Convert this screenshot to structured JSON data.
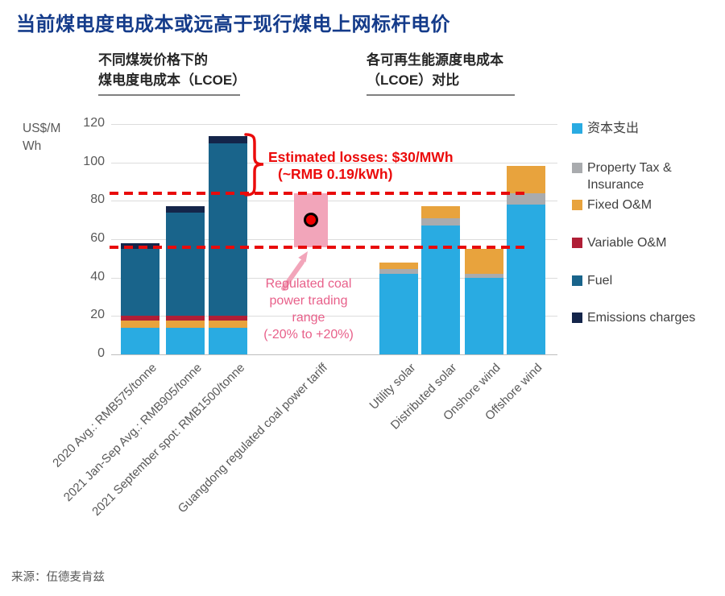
{
  "page": {
    "title": "当前煤电度电成本或远高于现行煤电上网标杆电价",
    "source": "来源：伍德麦肯兹"
  },
  "panels": {
    "left": {
      "line1": "不同煤炭价格下的",
      "line2": "煤电度电成本（LCOE）"
    },
    "right": {
      "line1": "各可再生能源度电成本",
      "line2": "（LCOE）对比"
    }
  },
  "chart_data": {
    "type": "bar",
    "stacked": true,
    "unit_label": "US$/MWh",
    "unit_label_lines": [
      "US$/M",
      "Wh"
    ],
    "ylim": [
      0,
      120
    ],
    "yticks": [
      0,
      20,
      40,
      60,
      80,
      100,
      120
    ],
    "grid": true,
    "legend_position": "right",
    "legend": [
      {
        "key": "capital",
        "label": "资本支出",
        "color": "#29ABE2"
      },
      {
        "key": "property_tax",
        "label": "Property Tax & Insurance",
        "color": "#A9ABAE"
      },
      {
        "key": "fixed_om",
        "label": "Fixed O&M",
        "color": "#E8A33D"
      },
      {
        "key": "variable_om",
        "label": "Variable O&M",
        "color": "#B01E36"
      },
      {
        "key": "fuel",
        "label": "Fuel",
        "color": "#19648B"
      },
      {
        "key": "emissions",
        "label": "Emissions charges",
        "color": "#14254A"
      }
    ],
    "bars": [
      {
        "category": "2020 Avg.: RMB575/tonne",
        "group": "coal",
        "total": 58,
        "segments": [
          {
            "key": "capital",
            "value": 14
          },
          {
            "key": "fixed_om",
            "value": 3.5
          },
          {
            "key": "variable_om",
            "value": 2.5
          },
          {
            "key": "fuel",
            "value": 35
          },
          {
            "key": "emissions",
            "value": 3
          }
        ]
      },
      {
        "category": "2021 Jan-Sep Avg.: RMB905/tonne",
        "group": "coal",
        "total": 77,
        "segments": [
          {
            "key": "capital",
            "value": 14
          },
          {
            "key": "fixed_om",
            "value": 3.5
          },
          {
            "key": "variable_om",
            "value": 2.5
          },
          {
            "key": "fuel",
            "value": 54
          },
          {
            "key": "emissions",
            "value": 3
          }
        ]
      },
      {
        "category": "2021 September spot: RMB1500/tonne",
        "group": "coal",
        "total": 113.5,
        "segments": [
          {
            "key": "capital",
            "value": 14
          },
          {
            "key": "fixed_om",
            "value": 3.5
          },
          {
            "key": "variable_om",
            "value": 2.5
          },
          {
            "key": "fuel",
            "value": 90
          },
          {
            "key": "emissions",
            "value": 3.5
          }
        ]
      },
      {
        "category": "Guangdong regulated coal power tariff",
        "group": "tariff",
        "type": "range",
        "low": 56,
        "high": 84,
        "dot": 70
      },
      {
        "category": "Utility solar",
        "group": "renewable",
        "total": 48,
        "segments": [
          {
            "key": "capital",
            "value": 42
          },
          {
            "key": "property_tax",
            "value": 2.5
          },
          {
            "key": "fixed_om",
            "value": 3.5
          }
        ]
      },
      {
        "category": "Distributed solar",
        "group": "renewable",
        "total": 77,
        "segments": [
          {
            "key": "capital",
            "value": 67
          },
          {
            "key": "property_tax",
            "value": 4
          },
          {
            "key": "fixed_om",
            "value": 6
          }
        ]
      },
      {
        "category": "Onshore wind",
        "group": "renewable",
        "total": 55,
        "segments": [
          {
            "key": "capital",
            "value": 40
          },
          {
            "key": "property_tax",
            "value": 2
          },
          {
            "key": "fixed_om",
            "value": 13
          }
        ]
      },
      {
        "category": "Offshore wind",
        "group": "renewable",
        "total": 98,
        "segments": [
          {
            "key": "capital",
            "value": 78
          },
          {
            "key": "property_tax",
            "value": 6
          },
          {
            "key": "fixed_om",
            "value": 14
          }
        ]
      }
    ],
    "dashed_lines": [
      84,
      56
    ],
    "dashed_color": "#E80B0B",
    "range_box_color": "#F2A5BA",
    "dot_fill": "#EE0000",
    "dot_ring": "#000000",
    "annotations": {
      "estimated_losses": {
        "line1": "Estimated losses: $30/MWh",
        "line2": "(~RMB 0.19/kWh)",
        "color": "#EB0B0B"
      },
      "trading_range": {
        "lines": [
          "Regulated coal",
          "power trading",
          "range",
          "(-20% to +20%)"
        ],
        "color": "#E8608A"
      }
    }
  }
}
